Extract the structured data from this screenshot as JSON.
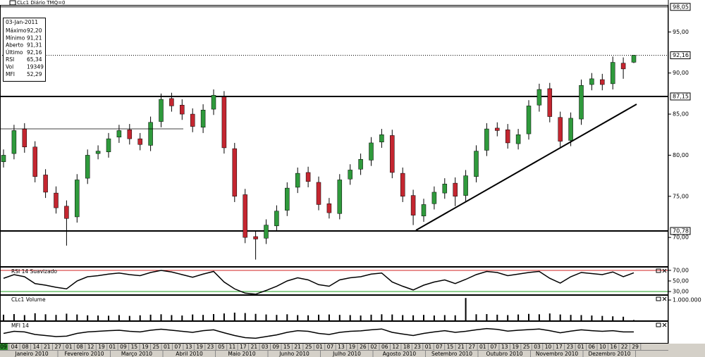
{
  "header": "CLc1 Diário TMQ=0",
  "info": {
    "date": "03-Jan-2011",
    "rows": [
      {
        "label": "Máximo",
        "value": "92,20"
      },
      {
        "label": "Mínimo",
        "value": "91,21"
      },
      {
        "label": "Aberto",
        "value": "91,31"
      },
      {
        "label": "Último",
        "value": "92,16"
      },
      {
        "label": "RSI",
        "value": "65,34"
      },
      {
        "label": "Vol",
        "value": "19349"
      },
      {
        "label": "MFI",
        "value": "52,29"
      }
    ]
  },
  "chart_data": [
    {
      "type": "candlestick",
      "ylim": [
        66.5,
        98.2
      ],
      "yticks": [
        {
          "value": 70,
          "label": "70,00"
        },
        {
          "value": 75,
          "label": "75,00"
        },
        {
          "value": 80,
          "label": "80,00"
        },
        {
          "value": 85,
          "label": "85,00"
        },
        {
          "value": 90,
          "label": "90,00"
        },
        {
          "value": 95,
          "label": "95,00"
        }
      ],
      "levels": [
        {
          "value": 98.05,
          "label": "98,05",
          "style": "thin"
        },
        {
          "value": 92.16,
          "label": "92,16",
          "style": "dotted"
        },
        {
          "value": 87.15,
          "label": "87,15",
          "style": "thick"
        },
        {
          "value": 70.78,
          "label": "70,78",
          "style": "thick"
        }
      ],
      "up_color": "#2f9a3c",
      "down_color": "#c42630",
      "open": [
        79.2,
        80.2,
        83.2,
        81,
        77.6,
        75.4,
        73.8,
        72.5,
        77.2,
        80.2,
        80.4,
        82.2,
        83.1,
        82,
        81.2,
        84.1,
        86.9,
        86.1,
        85,
        83.4,
        85.6,
        87.1,
        80.8,
        75.2,
        70.1,
        69.9,
        71.4,
        73.3,
        76.1,
        77.9,
        76.7,
        74.1,
        72.9,
        77.1,
        78.3,
        79.4,
        81.6,
        82.4,
        77.8,
        75.1,
        72.6,
        74.1,
        75.4,
        76.6,
        75.1,
        77.4,
        80.6,
        83.3,
        83.1,
        81.4,
        82.6,
        86.1,
        88.1,
        84.6,
        81.8,
        84.4,
        88.6,
        89.2,
        88.7,
        91.2,
        91.31
      ],
      "high": [
        80.7,
        83.7,
        83.9,
        81.7,
        78.3,
        76.2,
        74.5,
        77.7,
        80.7,
        81.2,
        82.7,
        83.7,
        83.8,
        82.7,
        84.7,
        87.5,
        87.6,
        86.8,
        85.7,
        86.2,
        88,
        87.8,
        81.5,
        75.9,
        70.8,
        72.2,
        73.9,
        76.7,
        78.5,
        78.6,
        77.4,
        74.8,
        77.7,
        78.9,
        80.2,
        82.2,
        83.2,
        83.1,
        78.5,
        75.8,
        74.7,
        76.2,
        77.2,
        77.3,
        78.2,
        81.2,
        83.9,
        84,
        83.8,
        83.2,
        86.7,
        88.7,
        88.8,
        85.3,
        85.2,
        89.2,
        90,
        89.9,
        92,
        91.9,
        92.2
      ],
      "low": [
        78.5,
        79.5,
        80.3,
        76.7,
        74.8,
        72.9,
        69,
        71.8,
        76.5,
        79.5,
        79.7,
        81.5,
        81.3,
        80.6,
        80.5,
        83.4,
        85.3,
        84.3,
        82.8,
        82.7,
        84.9,
        80.2,
        74.3,
        69.3,
        67.3,
        69.2,
        70.7,
        72.6,
        75.4,
        76.1,
        73.3,
        72.3,
        72.2,
        76.4,
        77.6,
        78.7,
        80.9,
        77.2,
        74.3,
        71.5,
        71.9,
        73.4,
        74.7,
        73.8,
        74.4,
        76.7,
        79.9,
        82.3,
        80.8,
        80.7,
        81.9,
        85.3,
        84,
        81,
        81.1,
        83.7,
        87.9,
        87.9,
        88,
        89.3,
        91.21
      ],
      "close": [
        80,
        83,
        81,
        77.4,
        75.5,
        73.6,
        72.3,
        77,
        80,
        80.5,
        82,
        83,
        82,
        81.3,
        84,
        86.8,
        86,
        85,
        83.5,
        85.5,
        87.3,
        80.9,
        75,
        70,
        69.8,
        71.5,
        73.2,
        76,
        77.8,
        76.8,
        74,
        73,
        77,
        78.2,
        79.5,
        81.5,
        82.5,
        77.9,
        75,
        72.7,
        74,
        75.5,
        76.5,
        75,
        77.5,
        80.5,
        83.2,
        83,
        81.5,
        82.5,
        86,
        88,
        84.7,
        81.7,
        84.5,
        88.5,
        89.3,
        88.6,
        91.3,
        90.5,
        92.16
      ]
    },
    {
      "type": "line",
      "title": "RSI 14 Suavizado",
      "ylim": [
        24.7,
        75.3
      ],
      "color": "#000000",
      "yticks": [
        {
          "value": 30,
          "label": "30,00"
        },
        {
          "value": 50,
          "label": "50,00"
        },
        {
          "value": 70,
          "label": "70,00"
        }
      ],
      "levels": [
        {
          "value": 70,
          "color": "#d02020"
        },
        {
          "value": 30,
          "color": "#20a020"
        }
      ],
      "values": [
        55,
        62,
        58,
        45,
        42,
        38,
        35,
        50,
        58,
        60,
        63,
        65,
        62,
        60,
        66,
        70,
        67,
        62,
        57,
        63,
        68,
        48,
        35,
        27,
        25,
        32,
        40,
        50,
        56,
        52,
        43,
        40,
        52,
        56,
        58,
        63,
        65,
        48,
        40,
        33,
        42,
        48,
        52,
        45,
        53,
        62,
        68,
        66,
        60,
        63,
        66,
        68,
        55,
        46,
        58,
        66,
        64,
        62,
        67,
        58,
        65.34
      ]
    },
    {
      "type": "bar",
      "title": "CLc1 Volume",
      "ylim": [
        0,
        1210000
      ],
      "color": "#000000",
      "yticks": [
        {
          "value": 1000000,
          "label": "1.000.000"
        }
      ],
      "values": [
        280000,
        310000,
        260000,
        350000,
        300000,
        270000,
        330000,
        290000,
        250000,
        240000,
        230000,
        260000,
        220000,
        250000,
        280000,
        300000,
        260000,
        240000,
        290000,
        270000,
        310000,
        340000,
        380000,
        360000,
        320000,
        290000,
        270000,
        300000,
        260000,
        250000,
        280000,
        290000,
        270000,
        260000,
        240000,
        280000,
        300000,
        290000,
        260000,
        250000,
        270000,
        240000,
        260000,
        250000,
        1100000,
        300000,
        310000,
        280000,
        260000,
        290000,
        320000,
        300000,
        340000,
        290000,
        270000,
        260000,
        240000,
        220000,
        200000,
        180000,
        19349
      ]
    },
    {
      "type": "line",
      "title": "MFI 14",
      "ylim": [
        0,
        100
      ],
      "color": "#000000",
      "values": [
        45,
        55,
        52,
        40,
        35,
        30,
        32,
        45,
        52,
        55,
        58,
        60,
        55,
        52,
        60,
        65,
        60,
        55,
        50,
        58,
        62,
        48,
        35,
        25,
        22,
        30,
        38,
        50,
        58,
        55,
        45,
        40,
        50,
        55,
        57,
        62,
        66,
        50,
        42,
        35,
        45,
        52,
        58,
        50,
        55,
        62,
        68,
        64,
        56,
        60,
        63,
        66,
        58,
        48,
        56,
        62,
        58,
        55,
        58,
        52,
        52.29
      ]
    }
  ],
  "x_axis": {
    "days": [
      "09",
      "04",
      "08",
      "14",
      "21",
      "27",
      "01",
      "08",
      "12",
      "19",
      "01",
      "09",
      "15",
      "19",
      "25",
      "01",
      "07",
      "13",
      "19",
      "23",
      "05",
      "11",
      "17",
      "21",
      "03",
      "09",
      "15",
      "21",
      "25",
      "01",
      "07",
      "13",
      "19",
      "26",
      "02",
      "06",
      "12",
      "18",
      "23",
      "01",
      "07",
      "15",
      "21",
      "27",
      "01",
      "07",
      "13",
      "19",
      "25",
      "03",
      "10",
      "17",
      "23",
      "01",
      "06",
      "10",
      "16",
      "22",
      "29"
    ],
    "months": [
      "Janeiro 2010",
      "Fevereiro 2010",
      "Março 2010",
      "Abril 2010",
      "Maio 2010",
      "Junho 2010",
      "Julho 2010",
      "Agosto 2010",
      "Setembro 2010",
      "Outubro 2010",
      "Novembro 2010",
      "Dezembro 2010"
    ]
  }
}
